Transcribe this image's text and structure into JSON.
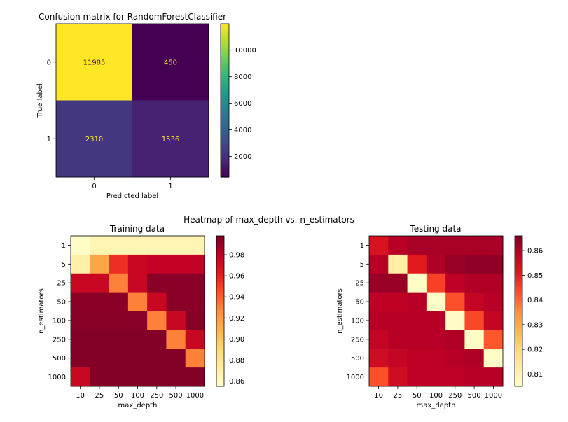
{
  "figure": {
    "suptitle": "Heatmap of max_depth vs. n_estimators"
  },
  "chart_data": [
    {
      "type": "heatmap",
      "title": "Confusion matrix for RandomForestClassifier",
      "xlabel": "Predicted label",
      "ylabel": "True label",
      "x_categories": [
        "0",
        "1"
      ],
      "y_categories": [
        "0",
        "1"
      ],
      "values": [
        [
          11985,
          450
        ],
        [
          2310,
          1536
        ]
      ],
      "cell_labels": true,
      "colormap": "viridis",
      "colorbar": {
        "min": 450,
        "max": 11985,
        "ticks": [
          2000,
          4000,
          6000,
          8000,
          10000
        ]
      },
      "text_colors": {
        "on_dark": "#fde725",
        "on_light": "#440154"
      }
    },
    {
      "type": "heatmap",
      "title": "Training data",
      "xlabel": "max_depth",
      "ylabel": "n_estimators",
      "x_categories": [
        "10",
        "25",
        "50",
        "100",
        "250",
        "500",
        "1000"
      ],
      "y_categories": [
        "1",
        "5",
        "25",
        "50",
        "100",
        "250",
        "500",
        "1000"
      ],
      "values": [
        [
          0.857,
          0.865,
          0.866,
          0.866,
          0.866,
          0.866,
          0.866
        ],
        [
          0.87,
          0.915,
          0.955,
          0.975,
          0.978,
          0.978,
          0.978
        ],
        [
          0.975,
          0.975,
          0.93,
          0.975,
          0.995,
          0.995,
          0.995
        ],
        [
          0.995,
          0.995,
          0.995,
          0.93,
          0.975,
          0.995,
          0.995
        ],
        [
          0.996,
          0.996,
          0.996,
          0.996,
          0.93,
          0.975,
          0.996
        ],
        [
          0.997,
          0.997,
          0.997,
          0.997,
          0.997,
          0.93,
          0.975
        ],
        [
          0.997,
          0.997,
          0.997,
          0.997,
          0.997,
          0.997,
          0.93
        ],
        [
          0.975,
          0.997,
          0.997,
          0.997,
          0.997,
          0.997,
          0.997
        ]
      ],
      "colormap": "YlOrRd",
      "colorbar": {
        "min": 0.855,
        "max": 0.998,
        "ticks": [
          0.86,
          0.88,
          0.9,
          0.92,
          0.94,
          0.96,
          0.98
        ]
      }
    },
    {
      "type": "heatmap",
      "title": "Testing data",
      "xlabel": "max_depth",
      "ylabel": "n_estimators",
      "x_categories": [
        "10",
        "25",
        "50",
        "100",
        "250",
        "500",
        "1000"
      ],
      "y_categories": [
        "1",
        "5",
        "25",
        "50",
        "100",
        "250",
        "500",
        "1000"
      ],
      "values": [
        [
          0.853,
          0.859,
          0.861,
          0.861,
          0.861,
          0.861,
          0.861
        ],
        [
          0.859,
          0.812,
          0.851,
          0.86,
          0.863,
          0.864,
          0.864
        ],
        [
          0.863,
          0.863,
          0.806,
          0.845,
          0.858,
          0.86,
          0.86
        ],
        [
          0.858,
          0.858,
          0.859,
          0.806,
          0.843,
          0.857,
          0.859
        ],
        [
          0.859,
          0.859,
          0.859,
          0.859,
          0.806,
          0.844,
          0.857
        ],
        [
          0.857,
          0.859,
          0.859,
          0.859,
          0.86,
          0.806,
          0.842
        ],
        [
          0.855,
          0.857,
          0.858,
          0.858,
          0.859,
          0.86,
          0.806
        ],
        [
          0.843,
          0.855,
          0.858,
          0.858,
          0.858,
          0.859,
          0.859
        ]
      ],
      "colormap": "YlOrRd",
      "colorbar": {
        "min": 0.805,
        "max": 0.866,
        "ticks": [
          0.81,
          0.82,
          0.83,
          0.84,
          0.85,
          0.86
        ]
      }
    }
  ]
}
